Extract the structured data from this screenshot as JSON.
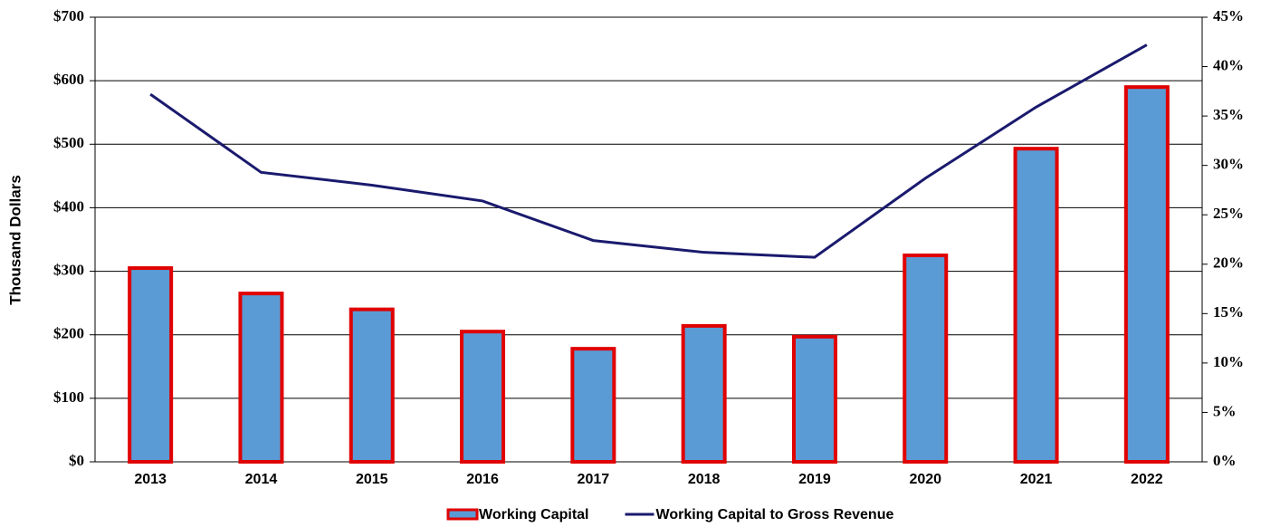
{
  "chart_data": {
    "type": "bar",
    "y_label": "Thousand Dollars",
    "categories": [
      "2013",
      "2014",
      "2015",
      "2016",
      "2017",
      "2018",
      "2019",
      "2020",
      "2021",
      "2022"
    ],
    "series": [
      {
        "name": "Working Capital",
        "type": "bar",
        "color": "#5b9bd5",
        "edge_color": "#e00000",
        "values": [
          305,
          265,
          240,
          205,
          178,
          214,
          197,
          325,
          493,
          590
        ]
      },
      {
        "name": "Working Capital to Gross Revenue",
        "type": "line",
        "axis": "y2",
        "color": "#1a1a6e",
        "values": [
          37.2,
          29.3,
          28.0,
          26.4,
          22.4,
          21.2,
          20.7,
          28.7,
          35.9,
          42.2
        ]
      }
    ],
    "ylim": [
      0,
      700
    ],
    "yticks": [
      {
        "value": 0,
        "label": "$0"
      },
      {
        "value": 100,
        "label": "$100"
      },
      {
        "value": 200,
        "label": "$200"
      },
      {
        "value": 300,
        "label": "$300"
      },
      {
        "value": 400,
        "label": "$400"
      },
      {
        "value": 500,
        "label": "$500"
      },
      {
        "value": 600,
        "label": "$600"
      },
      {
        "value": 700,
        "label": "$700"
      }
    ],
    "y2lim": [
      0,
      45
    ],
    "y2ticks": [
      {
        "value": 0,
        "label": "0%"
      },
      {
        "value": 5,
        "label": "5%"
      },
      {
        "value": 10,
        "label": "10%"
      },
      {
        "value": 15,
        "label": "15%"
      },
      {
        "value": 20,
        "label": "20%"
      },
      {
        "value": 25,
        "label": "25%"
      },
      {
        "value": 30,
        "label": "30%"
      },
      {
        "value": 35,
        "label": "35%"
      },
      {
        "value": 40,
        "label": "40%"
      },
      {
        "value": 45,
        "label": "45%"
      }
    ],
    "grid": true,
    "legend": "bottom"
  }
}
